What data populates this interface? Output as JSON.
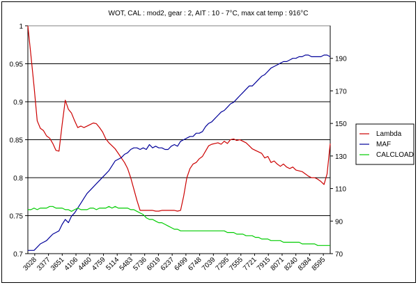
{
  "chart_data": {
    "type": "line",
    "title": "WOT, CAL : mod2, gear : 2, AIT : 10 - 7°C, max cat temp : 916°C",
    "xlabel": "",
    "ylabel": "",
    "x_tick_labels": [
      "3028",
      "3377",
      "3651",
      "4106",
      "4460",
      "4759",
      "5114",
      "5483",
      "5736",
      "6019",
      "6237",
      "6499",
      "6748",
      "7039",
      "7295",
      "7555",
      "7721",
      "7915",
      "8071",
      "8240",
      "8384",
      "8595"
    ],
    "ylim_left": [
      0.7,
      1.0
    ],
    "yticks_left": [
      "0.7",
      "0.75",
      "0.8",
      "0.85",
      "0.9",
      "0.95",
      "1"
    ],
    "ylim_right": [
      70,
      210
    ],
    "yticks_right": [
      "70",
      "90",
      "110",
      "130",
      "150",
      "170",
      "190"
    ],
    "grid": "horizontal",
    "legend_position": "right",
    "series": [
      {
        "name": "Lambda",
        "axis": "left",
        "color": "#cc0000",
        "values": [
          1.0,
          0.96,
          0.92,
          0.875,
          0.865,
          0.862,
          0.855,
          0.852,
          0.845,
          0.836,
          0.835,
          0.87,
          0.902,
          0.89,
          0.885,
          0.875,
          0.866,
          0.868,
          0.866,
          0.868,
          0.87,
          0.872,
          0.871,
          0.866,
          0.86,
          0.851,
          0.846,
          0.842,
          0.838,
          0.832,
          0.826,
          0.82,
          0.812,
          0.8,
          0.785,
          0.77,
          0.757,
          0.757,
          0.757,
          0.757,
          0.757,
          0.756,
          0.756,
          0.757,
          0.757,
          0.757,
          0.757,
          0.757,
          0.756,
          0.757,
          0.776,
          0.8,
          0.812,
          0.818,
          0.82,
          0.825,
          0.828,
          0.835,
          0.842,
          0.844,
          0.845,
          0.846,
          0.844,
          0.848,
          0.845,
          0.85,
          0.851,
          0.849,
          0.85,
          0.848,
          0.846,
          0.842,
          0.838,
          0.836,
          0.834,
          0.832,
          0.826,
          0.828,
          0.82,
          0.822,
          0.818,
          0.815,
          0.818,
          0.814,
          0.812,
          0.814,
          0.81,
          0.809,
          0.808,
          0.805,
          0.802,
          0.8,
          0.8,
          0.798,
          0.795,
          0.791,
          0.805,
          0.845
        ]
      },
      {
        "name": "MAF",
        "axis": "right",
        "color": "#000099",
        "values": [
          72,
          72,
          72,
          74,
          76,
          77,
          78,
          80,
          82,
          83,
          84,
          88,
          91,
          89,
          93,
          95,
          98,
          101,
          104,
          107,
          109,
          111,
          113,
          115,
          117,
          119,
          121,
          124,
          127,
          128,
          129,
          131,
          132,
          134,
          135,
          135,
          134,
          135,
          134,
          137,
          135,
          136,
          135,
          135,
          134,
          134,
          136,
          137,
          136,
          139,
          140,
          141,
          142,
          142,
          144,
          144,
          145,
          148,
          150,
          151,
          153,
          155,
          157,
          158,
          160,
          162,
          163,
          165,
          167,
          169,
          171,
          173,
          173,
          175,
          177,
          179,
          180,
          182,
          184,
          185,
          186,
          187,
          188,
          188,
          189,
          190,
          190,
          191,
          191,
          192,
          192,
          191,
          191,
          191,
          191,
          192,
          192,
          191
        ]
      },
      {
        "name": "CALCLOAD",
        "axis": "right",
        "color": "#00cc00",
        "values": [
          97,
          97,
          98,
          97,
          98,
          98,
          98,
          99,
          99,
          98,
          98,
          98,
          97,
          97,
          96,
          97,
          98,
          97,
          97,
          97,
          98,
          98,
          97,
          98,
          98,
          98,
          99,
          98,
          99,
          98,
          98,
          98,
          98,
          97,
          97,
          96,
          95,
          94,
          92,
          91,
          91,
          90,
          89,
          89,
          88,
          87,
          86,
          85,
          85,
          84,
          84,
          84,
          84,
          84,
          84,
          84,
          84,
          84,
          84,
          84,
          84,
          84,
          84,
          84,
          83,
          83,
          83,
          82,
          82,
          82,
          81,
          81,
          81,
          80,
          80,
          79,
          79,
          79,
          78,
          78,
          78,
          78,
          77,
          77,
          77,
          77,
          77,
          77,
          76,
          76,
          76,
          76,
          76,
          75,
          75,
          75,
          75,
          75
        ]
      }
    ]
  }
}
